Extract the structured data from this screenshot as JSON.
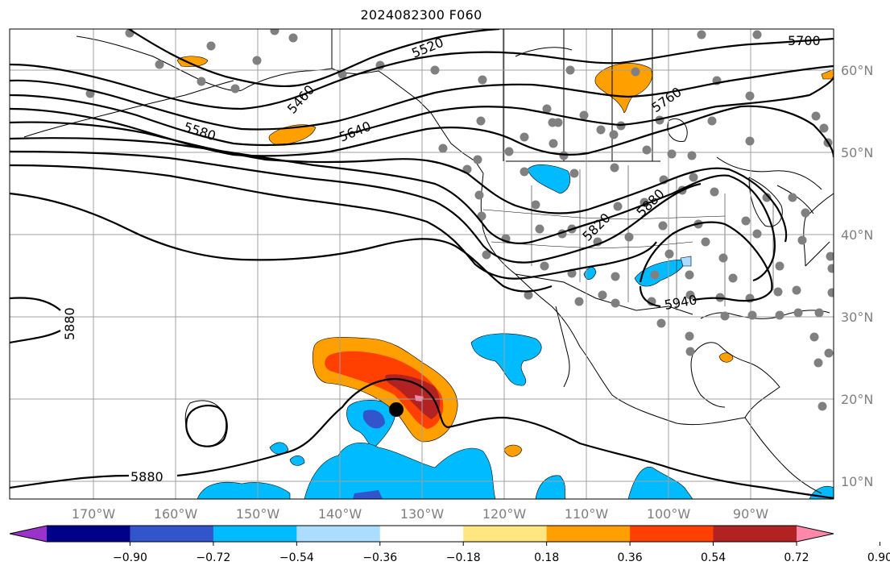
{
  "title": "2024082300 F060",
  "map": {
    "lon_ticks": [
      "170°W",
      "160°W",
      "150°W",
      "140°W",
      "130°W",
      "120°W",
      "110°W",
      "100°W",
      "90°W"
    ],
    "lat_ticks": [
      "60°N",
      "50°N",
      "40°N",
      "30°N",
      "20°N",
      "10°N"
    ],
    "height_contour_labels": [
      "5520",
      "5460",
      "5580",
      "5640",
      "5760",
      "5700",
      "5820",
      "5880",
      "5940",
      "5880",
      "5880"
    ],
    "grid_color": "#a0a0a0"
  },
  "colorbar": {
    "ticks": [
      "−0.90",
      "−0.72",
      "−0.54",
      "−0.36",
      "−0.18",
      "0.18",
      "0.36",
      "0.54",
      "0.72",
      "0.90"
    ],
    "colors": [
      "#9933cc",
      "#000088",
      "#3355cc",
      "#00bbff",
      "#aaddff",
      "#ffffff",
      "#ffe680",
      "#ffa000",
      "#ff4000",
      "#b22222",
      "#ff88aa"
    ]
  }
}
